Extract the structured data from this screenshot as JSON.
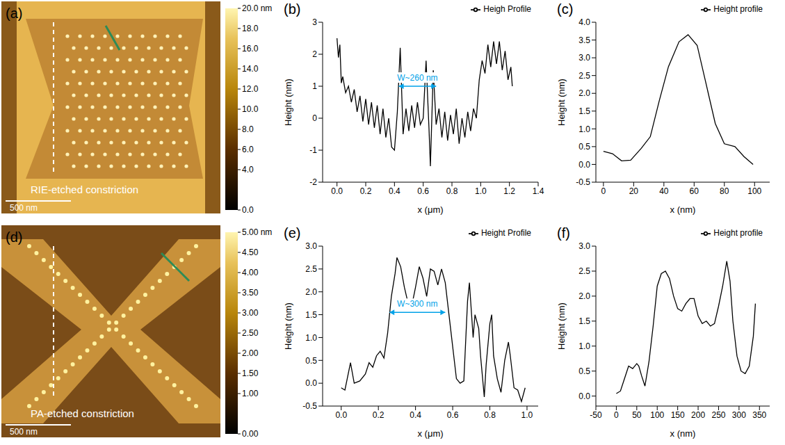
{
  "images": [
    {
      "label": "(a)",
      "caption": "RIE-etched constriction",
      "scale_bar": "500 nm",
      "colorbar": {
        "range": [
          0,
          20
        ],
        "ticks": [
          {
            "value": 20,
            "label": "20.0 nm"
          },
          {
            "value": 18,
            "label": "18.0"
          },
          {
            "value": 16,
            "label": "16.0"
          },
          {
            "value": 14,
            "label": "14.0"
          },
          {
            "value": 12,
            "label": "12.0"
          },
          {
            "value": 10,
            "label": "10.0"
          },
          {
            "value": 8,
            "label": "8.0"
          },
          {
            "value": 6,
            "label": "6.0"
          },
          {
            "value": 4,
            "label": "4.0"
          },
          {
            "value": 0,
            "label": "0.0"
          }
        ]
      }
    },
    {
      "label": "(d)",
      "caption": "PA-etched constriction",
      "scale_bar": "500 nm",
      "colorbar": {
        "range": [
          0,
          5
        ],
        "ticks": [
          {
            "value": 5,
            "label": "5.00 nm"
          },
          {
            "value": 4.5,
            "label": "4.50"
          },
          {
            "value": 4,
            "label": "4.00"
          },
          {
            "value": 3.5,
            "label": "3.50"
          },
          {
            "value": 3,
            "label": "3.00"
          },
          {
            "value": 2.5,
            "label": "2.50"
          },
          {
            "value": 2,
            "label": "2.00"
          },
          {
            "value": 1.5,
            "label": "1.50"
          },
          {
            "value": 1,
            "label": "1.00"
          },
          {
            "value": 0,
            "label": "0.00"
          }
        ]
      }
    }
  ],
  "chart_data": [
    {
      "label": "(b)",
      "type": "line",
      "x_label": "x (μm)",
      "y_label": "Height (nm)",
      "xlim": [
        -0.1,
        1.4
      ],
      "xticks": [
        {
          "value": 0,
          "label": "0.0"
        },
        0.2,
        0.4,
        0.6,
        0.8,
        {
          "value": 1,
          "label": "1.0"
        },
        1.2,
        1.4
      ],
      "ylim": [
        -2,
        3
      ],
      "yticks": [
        -2,
        -1,
        0,
        1,
        2,
        3
      ],
      "legend": "upper right",
      "x": [
        0,
        0.01,
        0.02,
        0.03,
        0.04,
        0.06,
        0.08,
        0.1,
        0.12,
        0.14,
        0.16,
        0.18,
        0.2,
        0.22,
        0.24,
        0.26,
        0.28,
        0.3,
        0.32,
        0.34,
        0.36,
        0.38,
        0.4,
        0.42,
        0.44,
        0.46,
        0.48,
        0.5,
        0.52,
        0.54,
        0.56,
        0.58,
        0.6,
        0.62,
        0.64,
        0.65,
        0.67,
        0.69,
        0.71,
        0.73,
        0.75,
        0.77,
        0.79,
        0.81,
        0.83,
        0.85,
        0.87,
        0.89,
        0.91,
        0.93,
        0.95,
        0.97,
        0.99,
        1.01,
        1.03,
        1.05,
        1.07,
        1.09,
        1.11,
        1.13,
        1.15,
        1.17,
        1.19,
        1.21,
        1.22
      ],
      "series": [
        {
          "name": "Heigh Profile",
          "color": "#000000",
          "values": [
            2.5,
            1.9,
            2.3,
            1.1,
            1.3,
            0.8,
            1.0,
            0.5,
            0.9,
            0.2,
            0.7,
            -0.1,
            0.6,
            -0.2,
            0.5,
            -0.3,
            0.4,
            -0.5,
            0.3,
            -0.6,
            0.0,
            -0.9,
            -1.0,
            0.2,
            2.2,
            -0.5,
            0.3,
            -0.4,
            0.4,
            -0.3,
            0.5,
            -0.2,
            0.0,
            1.8,
            -0.3,
            -1.5,
            1.5,
            -0.2,
            0.3,
            -0.6,
            0.2,
            -0.7,
            0.1,
            -0.5,
            0.3,
            -0.8,
            0.0,
            -0.6,
            0.2,
            -0.4,
            0.3,
            0.0,
            1.2,
            1.8,
            1.4,
            2.3,
            1.6,
            2.4,
            1.7,
            2.4,
            1.5,
            2.1,
            1.2,
            1.6,
            1.0
          ]
        }
      ],
      "annotations": [
        {
          "text": "W~260 nm",
          "x": [
            0.43,
            0.69
          ],
          "y": 1.0,
          "color": "#00a2e8"
        }
      ]
    },
    {
      "label": "(c)",
      "type": "line",
      "x_label": "x (nm)",
      "y_label": "Height (nm)",
      "xlim": [
        -5,
        110
      ],
      "xticks": [
        0,
        20,
        40,
        60,
        80,
        100
      ],
      "ylim": [
        -0.5,
        4.0
      ],
      "yticks": [
        -0.5,
        {
          "value": 0,
          "label": "0.0"
        },
        0.5,
        {
          "value": 1,
          "label": "1.0"
        },
        1.5,
        {
          "value": 2,
          "label": "2.0"
        },
        2.5,
        {
          "value": 3,
          "label": "3.0"
        },
        3.5,
        {
          "value": 4,
          "label": "4.0"
        }
      ],
      "legend": "upper right",
      "x": [
        0,
        6,
        12,
        18,
        25,
        31,
        37,
        43,
        50,
        56,
        62,
        68,
        74,
        80,
        87,
        93,
        99
      ],
      "series": [
        {
          "name": "Height profile",
          "color": "#000000",
          "values": [
            0.37,
            0.3,
            0.1,
            0.12,
            0.45,
            0.78,
            1.8,
            2.75,
            3.45,
            3.65,
            3.35,
            2.25,
            1.15,
            0.58,
            0.5,
            0.22,
            0.0
          ]
        }
      ],
      "annotations": []
    },
    {
      "label": "(e)",
      "type": "line",
      "x_label": "x (μm)",
      "y_label": "Height (nm)",
      "xlim": [
        -0.1,
        1.06
      ],
      "xticks": [
        {
          "value": 0,
          "label": "0.0"
        },
        0.2,
        0.4,
        0.6,
        0.8,
        {
          "value": 1,
          "label": "1.0"
        }
      ],
      "ylim": [
        -0.5,
        3.0
      ],
      "yticks": [
        -0.5,
        {
          "value": 0,
          "label": "0.0"
        },
        0.5,
        {
          "value": 1,
          "label": "1.0"
        },
        1.5,
        {
          "value": 2,
          "label": "2.0"
        },
        2.5,
        {
          "value": 3,
          "label": "3.0"
        }
      ],
      "legend": "upper right",
      "x": [
        0,
        0.02,
        0.05,
        0.07,
        0.1,
        0.13,
        0.15,
        0.17,
        0.19,
        0.21,
        0.23,
        0.25,
        0.27,
        0.29,
        0.3,
        0.32,
        0.34,
        0.36,
        0.38,
        0.4,
        0.42,
        0.44,
        0.46,
        0.48,
        0.5,
        0.52,
        0.54,
        0.56,
        0.58,
        0.6,
        0.62,
        0.64,
        0.66,
        0.68,
        0.69,
        0.7,
        0.71,
        0.72,
        0.74,
        0.75,
        0.77,
        0.78,
        0.8,
        0.81,
        0.82,
        0.84,
        0.86,
        0.88,
        0.9,
        0.91,
        0.93,
        0.95,
        0.97,
        0.99
      ],
      "series": [
        {
          "name": "Height Profile",
          "color": "#000000",
          "values": [
            -0.1,
            -0.15,
            0.45,
            0.0,
            0.05,
            0.2,
            0.45,
            0.35,
            0.6,
            0.7,
            0.55,
            1.1,
            1.9,
            2.4,
            2.75,
            2.55,
            2.1,
            1.75,
            1.7,
            2.1,
            2.55,
            2.3,
            1.9,
            2.5,
            2.45,
            2.15,
            2.5,
            2.2,
            1.5,
            0.8,
            0.1,
            0.0,
            0.05,
            1.8,
            2.2,
            1.6,
            1.0,
            1.5,
            1.2,
            0.6,
            -0.3,
            0.4,
            1.3,
            1.5,
            0.6,
            0.1,
            -0.2,
            0.5,
            0.9,
            0.6,
            -0.1,
            -0.15,
            -0.4,
            -0.1
          ]
        }
      ],
      "annotations": [
        {
          "text": "W~300 nm",
          "x": [
            0.26,
            0.56
          ],
          "y": 1.55,
          "color": "#00a2e8"
        }
      ]
    },
    {
      "label": "(f)",
      "type": "line",
      "x_label": "x (nm)",
      "y_label": "Height (nm)",
      "xlim": [
        -50,
        375
      ],
      "xticks": [
        -50,
        0,
        50,
        100,
        150,
        200,
        250,
        300,
        350
      ],
      "ylim": [
        -0.2,
        3.0
      ],
      "yticks": [
        {
          "value": 0,
          "label": "0.0"
        },
        0.5,
        {
          "value": 1,
          "label": "1.0"
        },
        1.5,
        {
          "value": 2,
          "label": "2.0"
        },
        2.5,
        {
          "value": 3,
          "label": "3.0"
        }
      ],
      "legend": "upper right",
      "x": [
        0,
        10,
        20,
        30,
        40,
        50,
        55,
        62,
        70,
        80,
        90,
        100,
        110,
        120,
        130,
        140,
        150,
        160,
        170,
        180,
        190,
        200,
        210,
        220,
        230,
        240,
        250,
        260,
        270,
        278,
        285,
        295,
        305,
        315,
        325,
        335,
        340
      ],
      "series": [
        {
          "name": "Height profile",
          "color": "#000000",
          "values": [
            0.05,
            0.1,
            0.35,
            0.6,
            0.55,
            0.65,
            0.6,
            0.4,
            0.2,
            0.7,
            1.4,
            2.2,
            2.45,
            2.5,
            2.35,
            2.0,
            1.75,
            1.7,
            1.85,
            1.95,
            1.95,
            1.6,
            1.45,
            1.5,
            1.4,
            1.45,
            1.8,
            2.2,
            2.7,
            2.3,
            1.5,
            0.8,
            0.5,
            0.45,
            0.6,
            1.2,
            1.85
          ]
        }
      ],
      "annotations": []
    }
  ]
}
